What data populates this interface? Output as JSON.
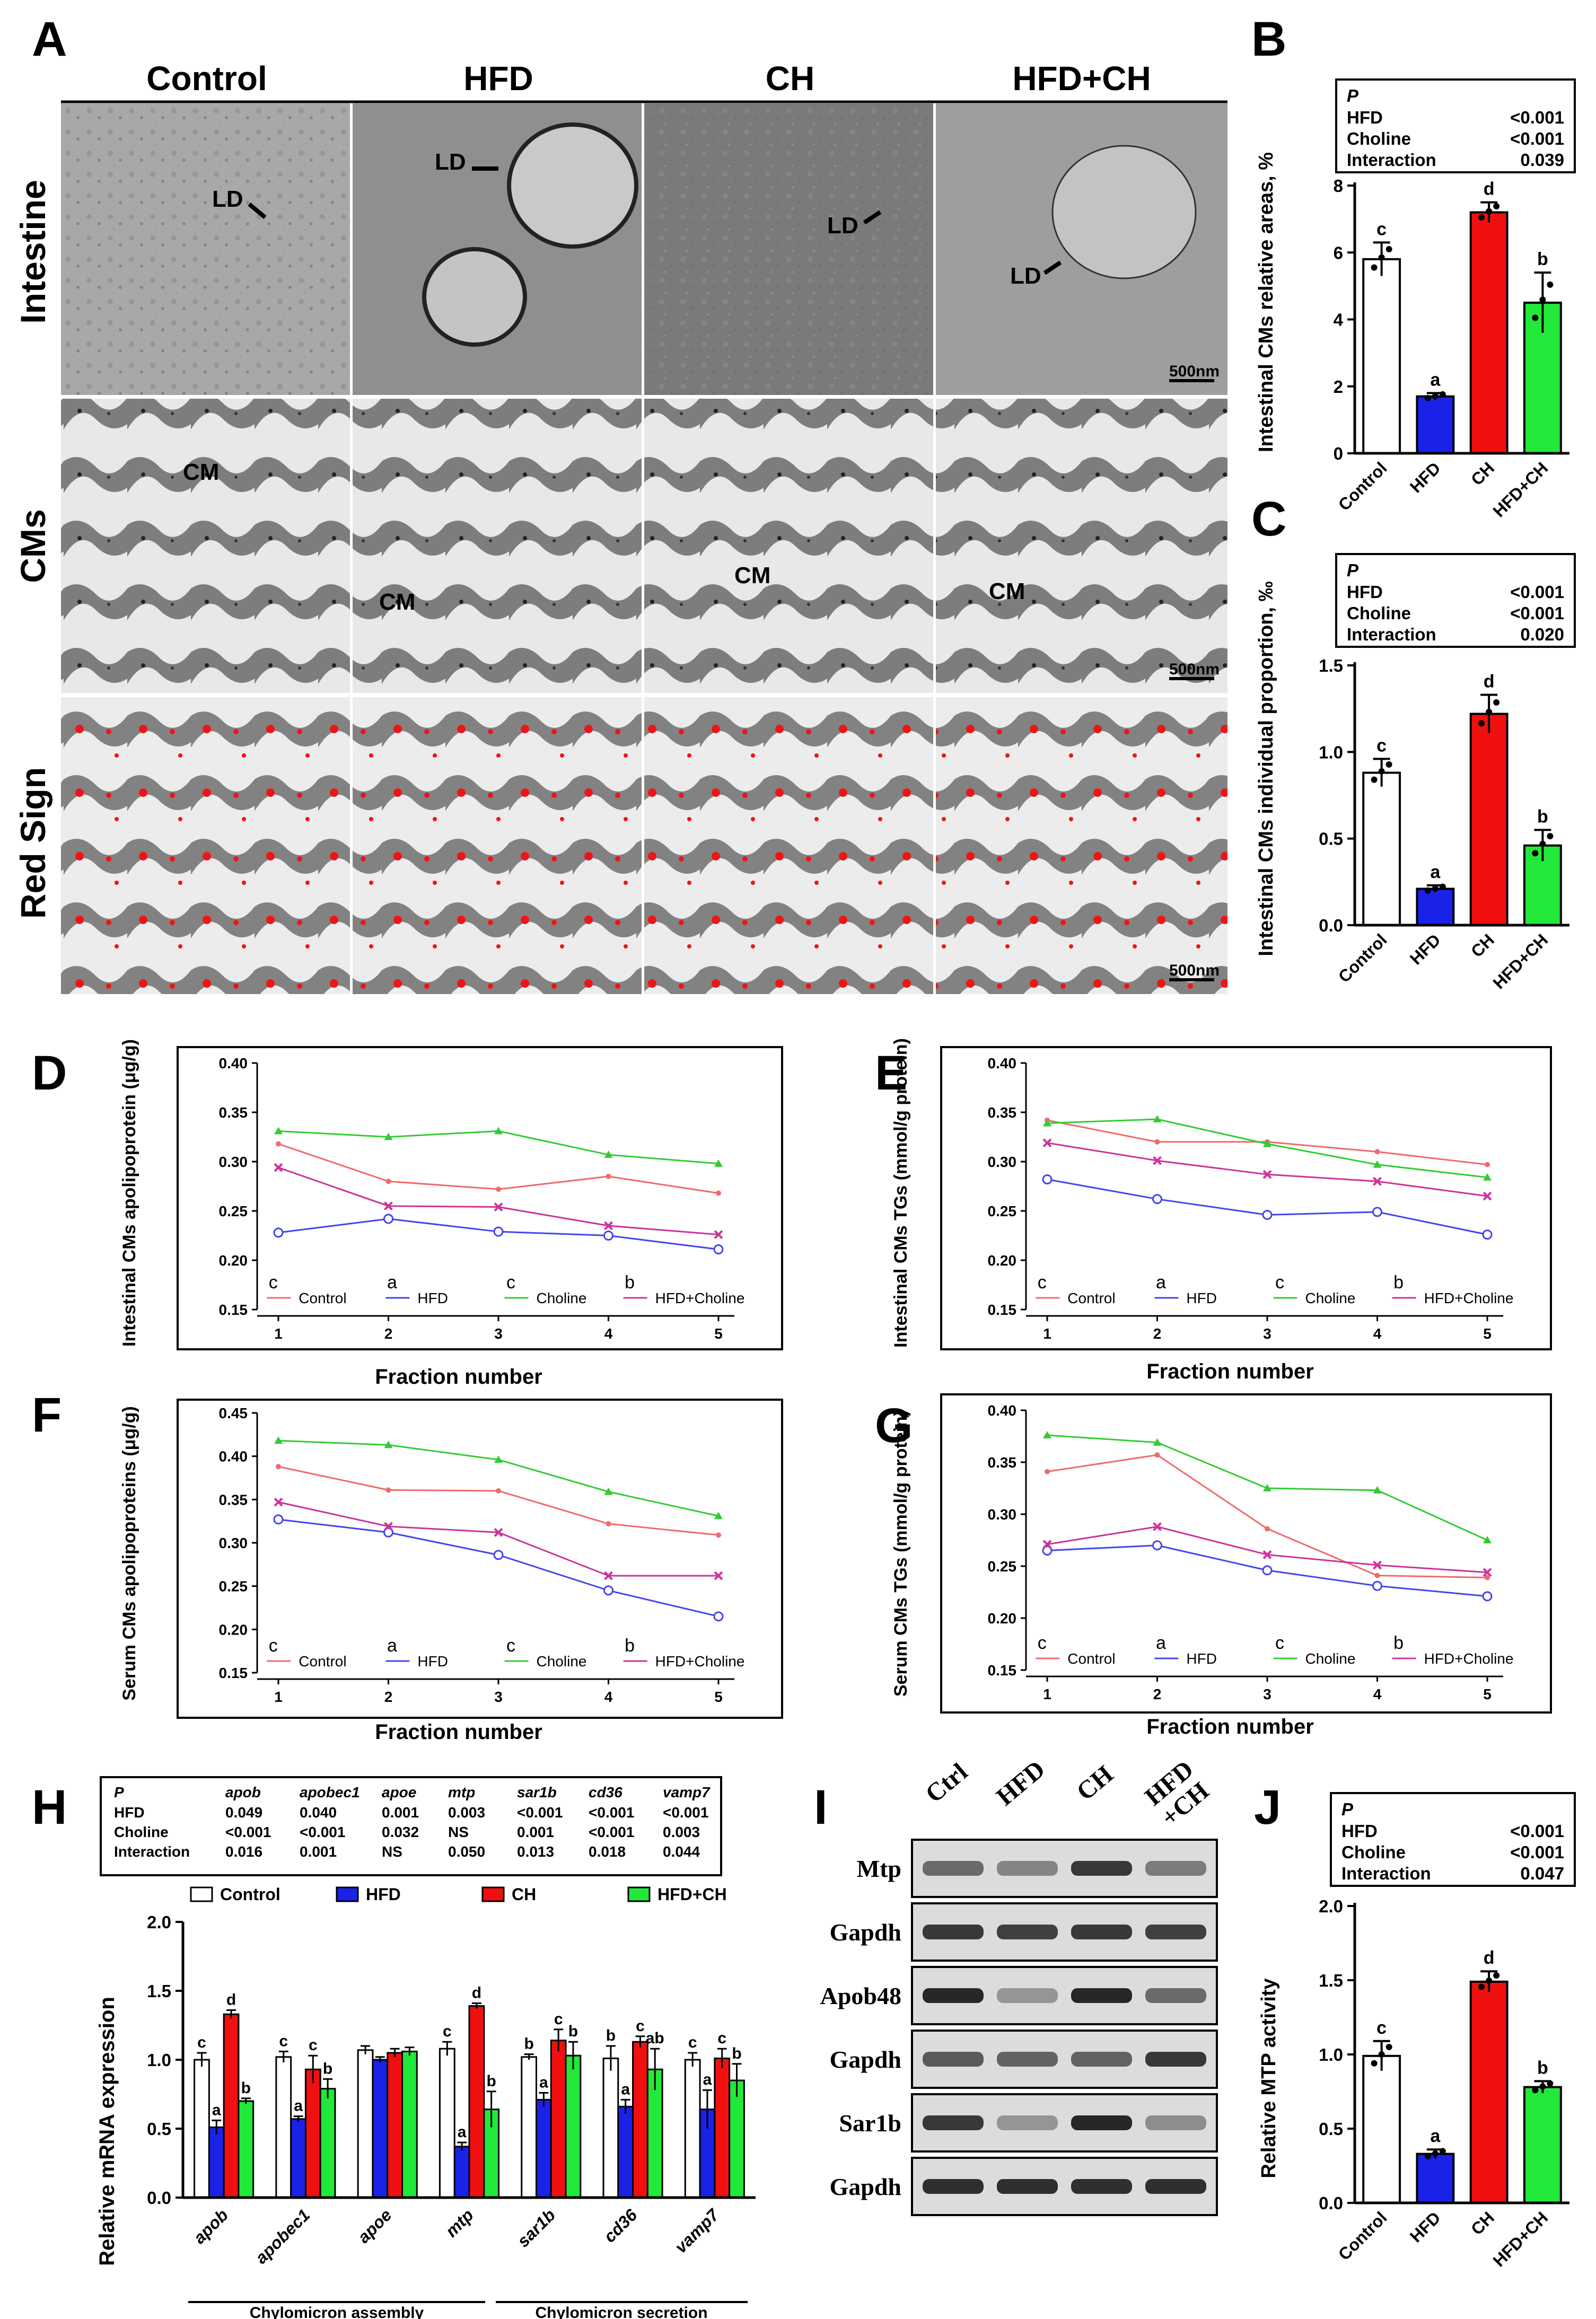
{
  "panel_letters": [
    "A",
    "B",
    "C",
    "D",
    "E",
    "F",
    "G",
    "H",
    "I",
    "J"
  ],
  "panelA": {
    "col_labels": [
      "Control",
      "HFD",
      "CH",
      "HFD+CH"
    ],
    "row_labels": [
      "Intestine",
      "CMs",
      "Red Sign"
    ],
    "scale_bar": "500nm",
    "annotations": {
      "intestine": [
        "LD",
        "LD",
        "LD",
        "LD"
      ],
      "cms": [
        "CM",
        "CM",
        "CM",
        "CM"
      ]
    }
  },
  "groups_short": [
    "Control",
    "HFD",
    "CH",
    "HFD+CH"
  ],
  "groups_long": [
    "Control",
    "HFD",
    "Choline",
    "HFD+Choline"
  ],
  "letters4": [
    "c",
    "a",
    "c",
    "b"
  ],
  "colors": {
    "control": "#ffffff",
    "hfd": "#1a22e8",
    "ch": "#f01010",
    "hfdch": "#22e83a",
    "line_control": "#f06a6a",
    "line_hfd": "#4444ee",
    "line_choline": "#33cc33",
    "line_hfdch": "#cc3399"
  },
  "chart_data": [
    {
      "id": "B",
      "type": "bar",
      "categories": [
        "Control",
        "HFD",
        "CH",
        "HFD+CH"
      ],
      "values": [
        5.8,
        1.7,
        7.2,
        4.5
      ],
      "errors": [
        0.5,
        0.1,
        0.3,
        0.9
      ],
      "letters": [
        "c",
        "a",
        "d",
        "b"
      ],
      "ylabel": "Intestinal CMs relative areas, %",
      "ylim": [
        0,
        8
      ],
      "yticks": [
        "0",
        "2",
        "4",
        "6",
        "8"
      ],
      "stats": {
        "header": "P",
        "rows": [
          [
            "HFD",
            "<0.001"
          ],
          [
            "Choline",
            "<0.001"
          ],
          [
            "Interaction",
            "0.039"
          ]
        ]
      }
    },
    {
      "id": "C",
      "type": "bar",
      "categories": [
        "Control",
        "HFD",
        "CH",
        "HFD+CH"
      ],
      "values": [
        0.88,
        0.21,
        1.22,
        0.46
      ],
      "errors": [
        0.08,
        0.02,
        0.11,
        0.09
      ],
      "letters": [
        "c",
        "a",
        "d",
        "b"
      ],
      "ylabel": "Intestinal CMs individual proportion, ‰",
      "ylim": [
        0,
        1.5
      ],
      "yticks": [
        "0.0",
        "0.5",
        "1.0",
        "1.5"
      ],
      "stats": {
        "header": "P",
        "rows": [
          [
            "HFD",
            "<0.001"
          ],
          [
            "Choline",
            "<0.001"
          ],
          [
            "Interaction",
            "0.020"
          ]
        ]
      }
    },
    {
      "id": "D",
      "type": "line",
      "x": [
        1,
        2,
        3,
        4,
        5
      ],
      "xlabel": "Fraction number",
      "ylabel": "Intestinal CMs apolipoprotein (μg/g)",
      "ylim": [
        0.15,
        0.4
      ],
      "yticks": [
        "0.15",
        "0.20",
        "0.25",
        "0.30",
        "0.35",
        "0.40"
      ],
      "series": [
        {
          "name": "Control",
          "values": [
            0.318,
            0.28,
            0.272,
            0.285,
            0.268
          ]
        },
        {
          "name": "HFD",
          "values": [
            0.228,
            0.242,
            0.229,
            0.225,
            0.211
          ]
        },
        {
          "name": "Choline",
          "values": [
            0.331,
            0.325,
            0.331,
            0.307,
            0.298
          ]
        },
        {
          "name": "HFD+Choline",
          "values": [
            0.294,
            0.255,
            0.254,
            0.235,
            0.226
          ]
        }
      ]
    },
    {
      "id": "E",
      "type": "line",
      "x": [
        1,
        2,
        3,
        4,
        5
      ],
      "xlabel": "Fraction number",
      "ylabel": "Intestinal CMs TGs (mmol/g protein)",
      "ylim": [
        0.15,
        0.4
      ],
      "yticks": [
        "0.15",
        "0.20",
        "0.25",
        "0.30",
        "0.35",
        "0.40"
      ],
      "series": [
        {
          "name": "Control",
          "values": [
            0.342,
            0.32,
            0.32,
            0.31,
            0.297
          ]
        },
        {
          "name": "HFD",
          "values": [
            0.282,
            0.262,
            0.246,
            0.249,
            0.226
          ]
        },
        {
          "name": "Choline",
          "values": [
            0.339,
            0.343,
            0.318,
            0.297,
            0.284
          ]
        },
        {
          "name": "HFD+Choline",
          "values": [
            0.319,
            0.301,
            0.287,
            0.28,
            0.265
          ]
        }
      ]
    },
    {
      "id": "F",
      "type": "line",
      "x": [
        1,
        2,
        3,
        4,
        5
      ],
      "xlabel": "Fraction number",
      "ylabel": "Serum CMs apolipoproteins (μg/g)",
      "ylim": [
        0.15,
        0.45
      ],
      "yticks": [
        "0.15",
        "0.20",
        "0.25",
        "0.30",
        "0.35",
        "0.40",
        "0.45"
      ],
      "series": [
        {
          "name": "Control",
          "values": [
            0.388,
            0.361,
            0.36,
            0.322,
            0.309
          ]
        },
        {
          "name": "HFD",
          "values": [
            0.327,
            0.312,
            0.286,
            0.245,
            0.215
          ]
        },
        {
          "name": "Choline",
          "values": [
            0.418,
            0.413,
            0.396,
            0.359,
            0.331
          ]
        },
        {
          "name": "HFD+Choline",
          "values": [
            0.347,
            0.319,
            0.312,
            0.262,
            0.262
          ]
        }
      ]
    },
    {
      "id": "G",
      "type": "line",
      "x": [
        1,
        2,
        3,
        4,
        5
      ],
      "xlabel": "Fraction number",
      "ylabel": "Serum CMs TGs (mmol/g protein)",
      "ylim": [
        0.15,
        0.4
      ],
      "yticks": [
        "0.15",
        "0.20",
        "0.25",
        "0.30",
        "0.35",
        "0.40"
      ],
      "series": [
        {
          "name": "Control",
          "values": [
            0.341,
            0.357,
            0.286,
            0.241,
            0.239
          ]
        },
        {
          "name": "HFD",
          "values": [
            0.265,
            0.27,
            0.246,
            0.231,
            0.221
          ]
        },
        {
          "name": "Choline",
          "values": [
            0.376,
            0.369,
            0.325,
            0.323,
            0.275
          ]
        },
        {
          "name": "HFD+Choline",
          "values": [
            0.271,
            0.288,
            0.261,
            0.251,
            0.244
          ]
        }
      ]
    },
    {
      "id": "H",
      "type": "bar",
      "categories": [
        "apob",
        "apobec1",
        "apoe",
        "mtp",
        "sar1b",
        "cd36",
        "vamp7"
      ],
      "ylabel": "Relative mRNA expression",
      "ylim": [
        0,
        2
      ],
      "yticks": [
        "0.0",
        "0.5",
        "1.0",
        "1.5",
        "2.0"
      ],
      "series": [
        {
          "name": "Control",
          "values": [
            1.0,
            1.02,
            1.07,
            1.08,
            1.02,
            1.01,
            1.0
          ]
        },
        {
          "name": "HFD",
          "values": [
            0.51,
            0.57,
            1.0,
            0.37,
            0.71,
            0.66,
            0.64
          ]
        },
        {
          "name": "CH",
          "values": [
            1.33,
            0.93,
            1.05,
            1.39,
            1.14,
            1.13,
            1.01
          ]
        },
        {
          "name": "HFD+CH",
          "values": [
            0.7,
            0.79,
            1.06,
            0.64,
            1.03,
            0.93,
            0.85
          ]
        }
      ],
      "errors": [
        [
          0.05,
          0.04,
          0.03,
          0.05,
          0.02,
          0.09,
          0.05
        ],
        [
          0.05,
          0.02,
          0.02,
          0.03,
          0.05,
          0.05,
          0.14
        ],
        [
          0.03,
          0.1,
          0.03,
          0.02,
          0.08,
          0.04,
          0.07
        ],
        [
          0.02,
          0.07,
          0.03,
          0.13,
          0.1,
          0.15,
          0.12
        ]
      ],
      "letters": [
        [
          "c",
          "c",
          "",
          "c",
          "b",
          "b",
          "c"
        ],
        [
          "a",
          "a",
          "",
          "a",
          "a",
          "a",
          "a"
        ],
        [
          "d",
          "c",
          "",
          "d",
          "c",
          "c",
          "c"
        ],
        [
          "b",
          "b",
          "",
          "b",
          "b",
          "ab",
          "b"
        ]
      ],
      "groups": [
        "Chylomicron assembly",
        "Chylomicron secretion"
      ],
      "stats": {
        "columns": [
          "P",
          "apob",
          "apobec1",
          "apoe",
          "mtp",
          "sar1b",
          "cd36",
          "vamp7"
        ],
        "rows": [
          [
            "HFD",
            "0.049",
            "0.040",
            "0.001",
            "0.003",
            "<0.001",
            "<0.001",
            "<0.001"
          ],
          [
            "Choline",
            "<0.001",
            "<0.001",
            "0.032",
            "NS",
            "0.001",
            "<0.001",
            "0.003"
          ],
          [
            "Interaction",
            "0.016",
            "0.001",
            "NS",
            "0.050",
            "0.013",
            "0.018",
            "0.044"
          ]
        ]
      }
    },
    {
      "id": "J",
      "type": "bar",
      "categories": [
        "Control",
        "HFD",
        "CH",
        "HFD+CH"
      ],
      "values": [
        0.99,
        0.33,
        1.49,
        0.78
      ],
      "errors": [
        0.1,
        0.03,
        0.07,
        0.04
      ],
      "letters": [
        "c",
        "a",
        "d",
        "b"
      ],
      "ylabel": "Relative MTP activity",
      "ylim": [
        0,
        2
      ],
      "yticks": [
        "0.0",
        "0.5",
        "1.0",
        "1.5",
        "2.0"
      ],
      "stats": {
        "header": "P",
        "rows": [
          [
            "HFD",
            "<0.001"
          ],
          [
            "Choline",
            "<0.001"
          ],
          [
            "Interaction",
            "0.047"
          ]
        ]
      }
    }
  ],
  "panelI": {
    "lanes": [
      "Ctrl",
      "HFD",
      "CH",
      "HFD\n+CH"
    ],
    "lane_line1": [
      "Ctrl",
      "HFD",
      "CH",
      "HFD"
    ],
    "lane_line2": [
      "",
      "",
      "",
      "+CH"
    ],
    "bands": [
      {
        "name": "Mtp",
        "intensity": [
          0.55,
          0.4,
          0.85,
          0.45
        ]
      },
      {
        "name": "Gapdh",
        "intensity": [
          0.85,
          0.8,
          0.85,
          0.8
        ]
      },
      {
        "name": "Apob48",
        "intensity": [
          0.95,
          0.3,
          0.95,
          0.55
        ]
      },
      {
        "name": "Gapdh",
        "intensity": [
          0.65,
          0.6,
          0.6,
          0.85
        ]
      },
      {
        "name": "Sar1b",
        "intensity": [
          0.85,
          0.3,
          0.95,
          0.35
        ]
      },
      {
        "name": "Gapdh",
        "intensity": [
          0.9,
          0.9,
          0.9,
          0.9
        ]
      }
    ]
  }
}
